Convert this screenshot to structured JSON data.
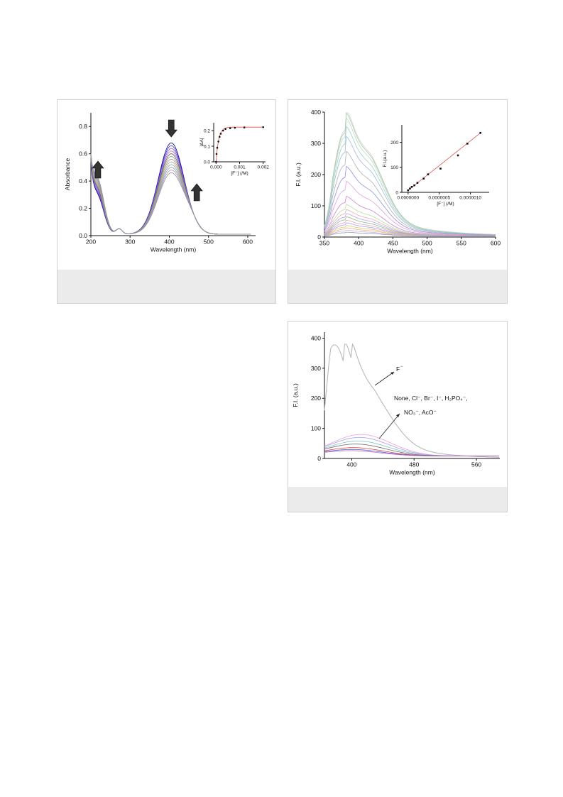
{
  "chart_data": [
    {
      "type": "line",
      "xlabel": "Wavelength (nm)",
      "ylabel": "Absorbance",
      "xlim": [
        200,
        620
      ],
      "ylim": [
        0,
        0.9
      ],
      "xticks": [
        200,
        300,
        400,
        500,
        600
      ],
      "yticks": [
        0.0,
        0.2,
        0.4,
        0.6,
        0.8
      ],
      "xtick_labels": [
        "200",
        "300",
        "400",
        "500",
        "600"
      ],
      "ytick_labels": [
        "0.0",
        "0.2",
        "0.4",
        "0.6",
        "0.8"
      ],
      "series_colors": [
        "#000080",
        "#3a3ad8",
        "#8a4fd0",
        "#b06acf",
        "#555555",
        "#7ca67c",
        "#b08aa0",
        "#c7a06a",
        "#6aa8c0",
        "#999999",
        "#b58ec8",
        "#8f8f8f"
      ],
      "peak_series": {
        "x": [
          405,
          218
        ],
        "values": [
          0.67,
          0.36
        ],
        "note_levels": [
          0.67,
          0.65,
          0.63,
          0.61,
          0.59,
          0.57,
          0.55,
          0.53,
          0.51,
          0.49,
          0.47,
          0.45
        ]
      },
      "arrows": [
        {
          "direction": "down",
          "x": 405
        },
        {
          "direction": "up",
          "x": 218
        },
        {
          "direction": "up",
          "x": 470
        }
      ],
      "inset": {
        "type": "scatter",
        "xlabel": "[F⁻] (/M)",
        "ylabel": "|ΔA|",
        "xlim": [
          -0.0001,
          0.0021
        ],
        "ylim": [
          0,
          0.25
        ],
        "xticks": [
          0.0,
          0.001,
          0.002
        ],
        "yticks": [
          0.0,
          0.1,
          0.2
        ],
        "xtick_labels": [
          "0.000",
          "0.001",
          "0.002"
        ],
        "ytick_labels": [
          "0.0",
          "0.1",
          "0.2"
        ],
        "x": [
          0.0,
          2e-05,
          5e-05,
          0.0001,
          0.00015,
          0.0002,
          0.0003,
          0.0004,
          0.0006,
          0.0008,
          0.0012,
          0.002
        ],
        "y": [
          0.0,
          0.05,
          0.09,
          0.13,
          0.16,
          0.18,
          0.2,
          0.21,
          0.215,
          0.218,
          0.22,
          0.222
        ],
        "fit_color": "#e0503a"
      }
    },
    {
      "type": "line",
      "xlabel": "Wavelength (nm)",
      "ylabel": "F.I. (a.u.)",
      "xlim": [
        350,
        600
      ],
      "ylim": [
        0,
        400
      ],
      "xticks": [
        350,
        400,
        450,
        500,
        550,
        600
      ],
      "yticks": [
        0,
        100,
        200,
        300,
        400
      ],
      "xtick_labels": [
        "350",
        "400",
        "450",
        "500",
        "550",
        "600"
      ],
      "ytick_labels": [
        "0",
        "100",
        "200",
        "300",
        "400"
      ],
      "peak_x": 376,
      "peak_values": [
        378,
        370,
        355,
        330,
        300,
        255,
        210,
        165,
        120,
        95,
        80,
        68,
        58,
        48,
        40,
        32,
        25,
        18,
        12
      ],
      "series_colors": [
        "#d0d0d0",
        "#a6c8a6",
        "#bfd9bf",
        "#9fcfc8",
        "#a0b8d8",
        "#b0b0b0",
        "#9090e0",
        "#e0a0e0",
        "#d080d0",
        "#b0e0a0",
        "#e0b0b0",
        "#c0a0f0",
        "#80c080",
        "#f0a0c0",
        "#a0a0ff",
        "#d0d060",
        "#ffa0a0",
        "#c0c0c0",
        "#9090c0"
      ],
      "inset": {
        "type": "scatter",
        "xlabel": "[F⁻] (/M)",
        "ylabel": "F.I.(a.u.)",
        "xlim": [
          -1e-07,
          1.3e-06
        ],
        "ylim": [
          0,
          270
        ],
        "xticks": [
          0.0,
          5e-07,
          1e-06
        ],
        "yticks": [
          0,
          100,
          200
        ],
        "xtick_labels": [
          "0.0000000",
          "0.0000005",
          "0.0000010"
        ],
        "ytick_labels": [
          "0",
          "100",
          "200"
        ],
        "x": [
          0.0,
          3e-08,
          6e-08,
          1e-07,
          1.5e-07,
          2.5e-07,
          3.2e-07,
          5.2e-07,
          8e-07,
          9.5e-07,
          1.16e-06
        ],
        "y": [
          8,
          15,
          22,
          28,
          38,
          55,
          72,
          95,
          148,
          195,
          238
        ],
        "fit_color": "#e05050"
      }
    },
    {
      "type": "line",
      "xlabel": "Wavelength (nm)",
      "ylabel": "F.I. (a.u.)",
      "xlim": [
        365,
        590
      ],
      "ylim": [
        0,
        420
      ],
      "xticks": [
        400,
        480,
        560
      ],
      "yticks": [
        0,
        100,
        200,
        300,
        400
      ],
      "xtick_labels": [
        "400",
        "480",
        "560"
      ],
      "ytick_labels": [
        "0",
        "100",
        "200",
        "300",
        "400"
      ],
      "series": [
        {
          "name": "F⁻",
          "peak_x": 378,
          "peak": 378,
          "color": "#b8b8b8"
        },
        {
          "name": "None",
          "peak_x": 412,
          "peak": 72,
          "color": "#f0a0d0"
        },
        {
          "name": "Cl⁻",
          "peak_x": 410,
          "peak": 62,
          "color": "#a0a0f0"
        },
        {
          "name": "Br⁻",
          "peak_x": 408,
          "peak": 50,
          "color": "#80c0c0"
        },
        {
          "name": "I⁻",
          "peak_x": 405,
          "peak": 40,
          "color": "#707070"
        },
        {
          "name": "H₂PO₄⁻",
          "peak_x": 402,
          "peak": 28,
          "color": "#e04040"
        },
        {
          "name": "NO₃⁻",
          "peak_x": 400,
          "peak": 22,
          "color": "#4060e0"
        },
        {
          "name": "AcO⁻",
          "peak_x": 398,
          "peak": 18,
          "color": "#c060c0"
        }
      ],
      "annotations": {
        "f_label": "F",
        "f_sup": "−",
        "line1": "None, Cl⁻, Br⁻, I⁻, H₂PO₄⁻,",
        "line2": "NO₃⁻, AcO⁻"
      }
    }
  ]
}
